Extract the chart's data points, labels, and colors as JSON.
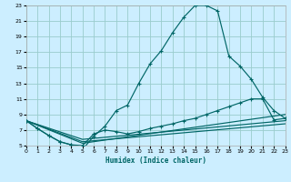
{
  "title": "",
  "xlabel": "Humidex (Indice chaleur)",
  "bg_color": "#cceeff",
  "grid_color": "#99cccc",
  "line_color": "#006666",
  "xmin": 0,
  "xmax": 23,
  "ymin": 5,
  "ymax": 23,
  "xticks": [
    0,
    1,
    2,
    3,
    4,
    5,
    6,
    7,
    8,
    9,
    10,
    11,
    12,
    13,
    14,
    15,
    16,
    17,
    18,
    19,
    20,
    21,
    22,
    23
  ],
  "yticks": [
    5,
    7,
    9,
    11,
    13,
    15,
    17,
    19,
    21,
    23
  ],
  "curve1_x": [
    0,
    1,
    2,
    3,
    4,
    5,
    6,
    7,
    8,
    9,
    10,
    11,
    12,
    13,
    14,
    15,
    16,
    17,
    18,
    19,
    20,
    21,
    22,
    23
  ],
  "curve1_y": [
    8.2,
    7.2,
    6.3,
    5.5,
    5.1,
    4.5,
    6.2,
    7.5,
    9.5,
    10.2,
    13.0,
    15.5,
    17.2,
    19.5,
    21.5,
    23.0,
    23.0,
    22.3,
    16.5,
    15.2,
    13.5,
    11.2,
    9.5,
    8.5
  ],
  "curve2_x": [
    0,
    1,
    2,
    3,
    4,
    5,
    6,
    7,
    8,
    9,
    10,
    11,
    12,
    13,
    14,
    15,
    16,
    17,
    18,
    19,
    20,
    21,
    22,
    23
  ],
  "curve2_y": [
    8.2,
    7.2,
    6.3,
    5.5,
    5.1,
    5.0,
    6.5,
    7.0,
    6.8,
    6.5,
    6.8,
    7.2,
    7.5,
    7.8,
    8.2,
    8.5,
    9.0,
    9.5,
    10.0,
    10.5,
    11.0,
    11.0,
    8.3,
    8.5
  ],
  "line3_x": [
    0,
    5,
    23
  ],
  "line3_y": [
    8.2,
    5.8,
    8.2
  ],
  "line4_x": [
    0,
    5,
    23
  ],
  "line4_y": [
    8.2,
    5.5,
    7.8
  ],
  "line5_x": [
    0,
    5,
    23
  ],
  "line5_y": [
    8.2,
    5.3,
    9.0
  ]
}
